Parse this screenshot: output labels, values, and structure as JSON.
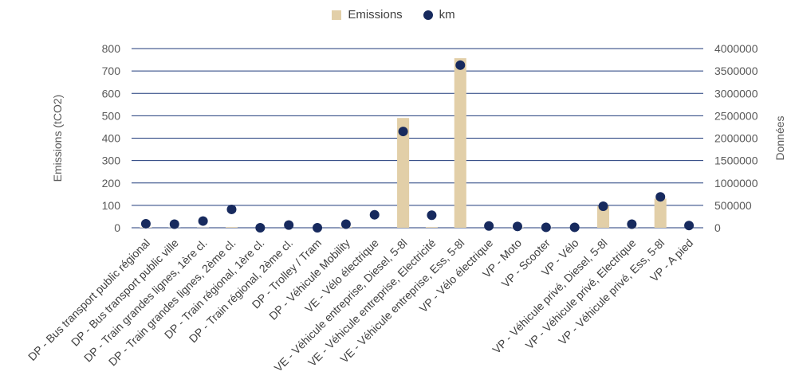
{
  "chart_data": {
    "type": "bar",
    "categories": [
      "DP - Bus transport public régional",
      "DP - Bus transport public ville",
      "DP - Train grandes lignes, 1ère cl.",
      "DP - Train grandes lignes, 2ème cl.",
      "DP - Train régional, 1ère cl.",
      "DP - Train régional, 2ème cl.",
      "DP - Trolley / Tram",
      "DP - Véhicule Mobility",
      "VE - Vélo électrique",
      "VE - Véhicule entreprise, Diesel, 5-8l",
      "VE - Véhicule entreprise, Electricité",
      "VE - Véhicule entreprise, Ess, 5-8l",
      "VP - Vélo électrique",
      "VP - Moto",
      "VP - Scooter",
      "VP - Vélo",
      "VP - Véhicule privé, Diesel, 5-8l",
      "VP - Véhicule privé, Electrique",
      "VP - Véhicule privé, Ess, 5-8l",
      "VP - A pied"
    ],
    "series": [
      {
        "name": "Emissions",
        "type": "bar",
        "axis": "left",
        "color": "#e2cfa8",
        "values": [
          2,
          1,
          1,
          3,
          0,
          0,
          0,
          3,
          0,
          490,
          3,
          757,
          0,
          2,
          1,
          0,
          98,
          1,
          130,
          0
        ]
      },
      {
        "name": "km",
        "type": "scatter",
        "axis": "right",
        "color": "#172a5e",
        "values": [
          90000,
          80000,
          150000,
          410000,
          0,
          60000,
          0,
          80000,
          290000,
          2150000,
          280000,
          3630000,
          40000,
          30000,
          10000,
          10000,
          480000,
          80000,
          690000,
          50000
        ]
      }
    ],
    "ylabel": "Emissions (tCO2)",
    "y2label": "Données",
    "ylim": [
      0,
      800
    ],
    "y2lim": [
      0,
      4000000
    ],
    "yticks": [
      "0",
      "100",
      "200",
      "300",
      "400",
      "500",
      "600",
      "700",
      "800"
    ],
    "y2ticks": [
      "0",
      "500000",
      "1000000",
      "1500000",
      "2000000",
      "2500000",
      "3000000",
      "3500000",
      "4000000"
    ],
    "grid": true,
    "legend_position": "top-center",
    "gridline_color": "#1f3a7a"
  }
}
